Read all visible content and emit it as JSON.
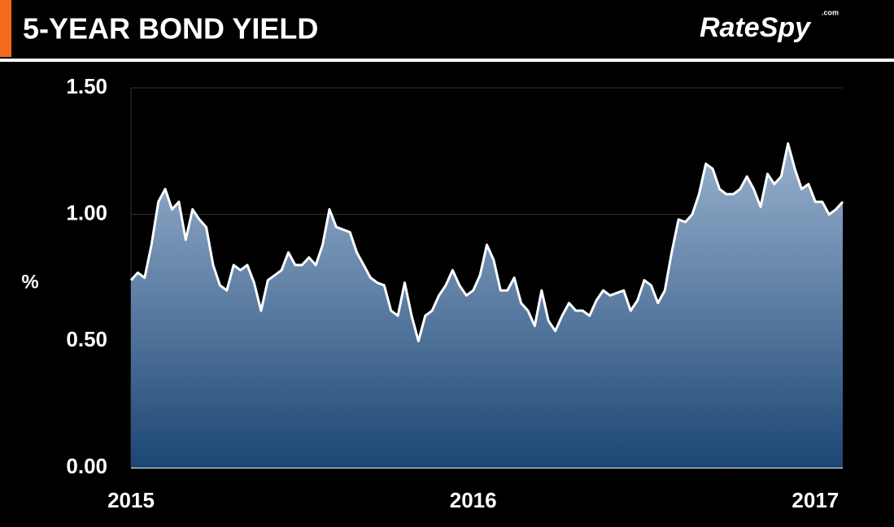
{
  "header": {
    "title": "5-YEAR BOND YIELD",
    "logo": "RateSpy",
    "logo_suffix": ".com"
  },
  "chart_data": {
    "type": "area",
    "y_label": "%",
    "categories": [
      "2015",
      null,
      null,
      null,
      null,
      null,
      null,
      null,
      null,
      null,
      null,
      null,
      null,
      null,
      null,
      null,
      null,
      null,
      null,
      null,
      null,
      null,
      null,
      null,
      null,
      null,
      null,
      null,
      null,
      null,
      null,
      null,
      null,
      null,
      null,
      null,
      null,
      null,
      null,
      null,
      null,
      null,
      null,
      null,
      null,
      null,
      null,
      null,
      null,
      null,
      "2016",
      null,
      null,
      null,
      null,
      null,
      null,
      null,
      null,
      null,
      null,
      null,
      null,
      null,
      null,
      null,
      null,
      null,
      null,
      null,
      null,
      null,
      null,
      null,
      null,
      null,
      null,
      null,
      null,
      null,
      null,
      null,
      null,
      null,
      null,
      null,
      null,
      null,
      null,
      null,
      null,
      null,
      null,
      null,
      null,
      null,
      null,
      null,
      null,
      null,
      "2017",
      null,
      null,
      null,
      null
    ],
    "values": [
      0.74,
      0.77,
      0.75,
      0.88,
      1.05,
      1.1,
      1.02,
      1.05,
      0.9,
      1.02,
      0.98,
      0.95,
      0.8,
      0.72,
      0.7,
      0.8,
      0.78,
      0.8,
      0.73,
      0.62,
      0.74,
      0.76,
      0.78,
      0.85,
      0.8,
      0.8,
      0.83,
      0.8,
      0.88,
      1.02,
      0.95,
      0.94,
      0.93,
      0.85,
      0.8,
      0.75,
      0.73,
      0.72,
      0.62,
      0.6,
      0.73,
      0.6,
      0.5,
      0.6,
      0.62,
      0.68,
      0.72,
      0.78,
      0.72,
      0.68,
      0.7,
      0.76,
      0.88,
      0.82,
      0.7,
      0.7,
      0.75,
      0.65,
      0.62,
      0.56,
      0.7,
      0.58,
      0.54,
      0.6,
      0.65,
      0.62,
      0.62,
      0.6,
      0.66,
      0.7,
      0.68,
      0.69,
      0.7,
      0.62,
      0.66,
      0.74,
      0.72,
      0.65,
      0.7,
      0.85,
      0.98,
      0.97,
      1.0,
      1.08,
      1.2,
      1.18,
      1.1,
      1.08,
      1.08,
      1.1,
      1.15,
      1.1,
      1.03,
      1.16,
      1.12,
      1.15,
      1.28,
      1.18,
      1.1,
      1.12,
      1.05,
      1.05,
      1.0,
      1.02,
      1.05
    ],
    "color": "#ffffff",
    "ylim": [
      0,
      1.5
    ],
    "yticks": [
      {
        "value": 0,
        "label": "0.00"
      },
      {
        "value": 0.5,
        "label": "0.50"
      },
      {
        "value": 1,
        "label": "1.00"
      },
      {
        "value": 1.5,
        "label": "1.50"
      }
    ],
    "grid": true
  }
}
